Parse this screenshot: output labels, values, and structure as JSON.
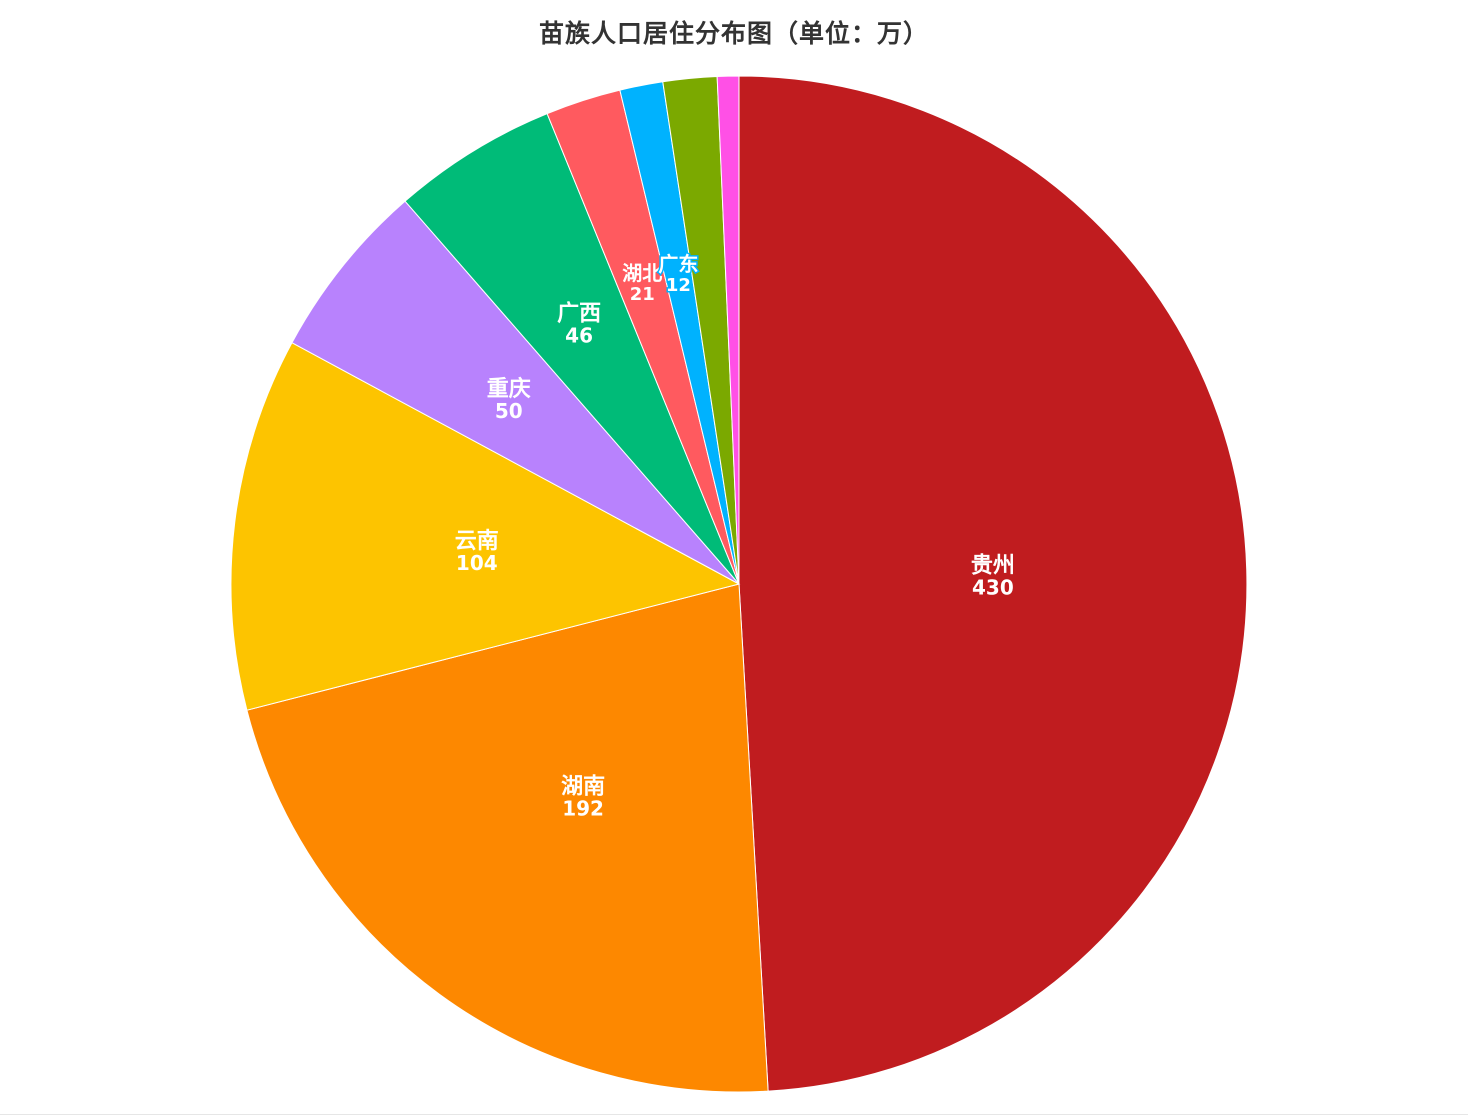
{
  "chart_data": {
    "type": "pie",
    "title": "苗族人口居住分布图（单位：万）",
    "categories": [
      "贵州",
      "湖南",
      "云南",
      "重庆",
      "广西",
      "湖北",
      "广东",
      "",
      ""
    ],
    "values": [
      430,
      192,
      104,
      50,
      46,
      21,
      12,
      15,
      6
    ],
    "colors": [
      "#c01c1f",
      "#fd8800",
      "#fdc400",
      "#b882fd",
      "#00bb78",
      "#ff5a5f",
      "#00b2fe",
      "#7ba900",
      "#ff50e6"
    ],
    "start_angle": "12 o'clock",
    "direction": "clockwise",
    "legend": "none",
    "value_labels": "inside"
  }
}
